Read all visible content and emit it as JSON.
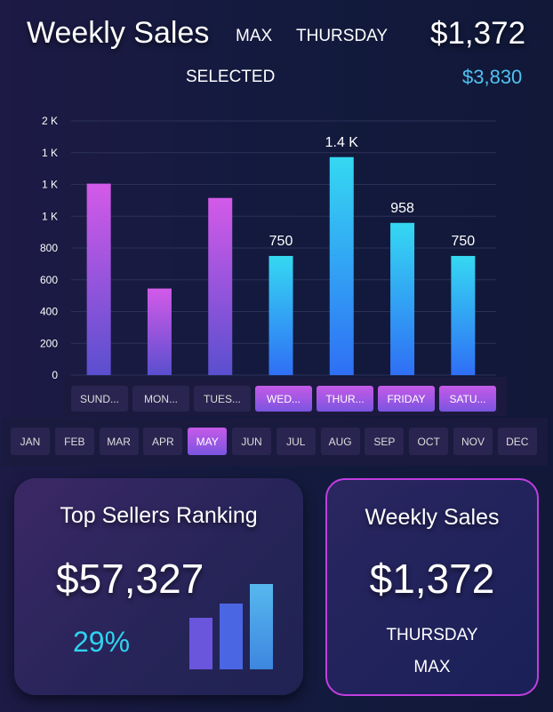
{
  "header": {
    "title": "Weekly Sales",
    "max_label": "MAX",
    "max_day": "THURSDAY",
    "max_value": "$1,372",
    "selected_label": "SELECTED",
    "selected_value": "$3,830"
  },
  "chart_data": {
    "type": "bar",
    "categories": [
      "Sunday",
      "Monday",
      "Tuesday",
      "Wednesday",
      "Thursday",
      "Friday",
      "Saturday"
    ],
    "values": [
      1205,
      545,
      1115,
      750,
      1372,
      958,
      750
    ],
    "data_labels": [
      "",
      "",
      "",
      "750",
      "1.4 K",
      "958",
      "750"
    ],
    "selected": [
      false,
      false,
      false,
      true,
      true,
      true,
      true
    ],
    "ylim": [
      0,
      1600
    ],
    "yticks": [
      0,
      200,
      400,
      600,
      800,
      1000,
      1200,
      1400,
      1600
    ],
    "ytick_labels": [
      "0",
      "200",
      "400",
      "600",
      "800",
      "1 K",
      "1 K",
      "1 K",
      "2 K"
    ],
    "grid": true,
    "colors": {
      "unselected": [
        "#d35ae8",
        "#5a4fcf"
      ],
      "selected": [
        "#35d8f2",
        "#2f6ff5"
      ]
    }
  },
  "day_buttons": [
    {
      "label": "SUND...",
      "selected": false
    },
    {
      "label": "MON...",
      "selected": false
    },
    {
      "label": "TUES...",
      "selected": false
    },
    {
      "label": "WED...",
      "selected": true
    },
    {
      "label": "THUR...",
      "selected": true
    },
    {
      "label": "FRIDAY",
      "selected": true
    },
    {
      "label": "SATU...",
      "selected": true
    }
  ],
  "month_buttons": [
    {
      "label": "JAN"
    },
    {
      "label": "FEB"
    },
    {
      "label": "MAR"
    },
    {
      "label": "APR"
    },
    {
      "label": "MAY",
      "selected": true
    },
    {
      "label": "JUN"
    },
    {
      "label": "JUL"
    },
    {
      "label": "AUG"
    },
    {
      "label": "SEP"
    },
    {
      "label": "OCT"
    },
    {
      "label": "NOV"
    },
    {
      "label": "DEC"
    }
  ],
  "top_sellers": {
    "title": "Top Sellers Ranking",
    "value": "$57,327",
    "percent": "29%"
  },
  "weekly_card": {
    "title": "Weekly Sales",
    "value": "$1,372",
    "day": "THURSDAY",
    "label": "MAX"
  }
}
